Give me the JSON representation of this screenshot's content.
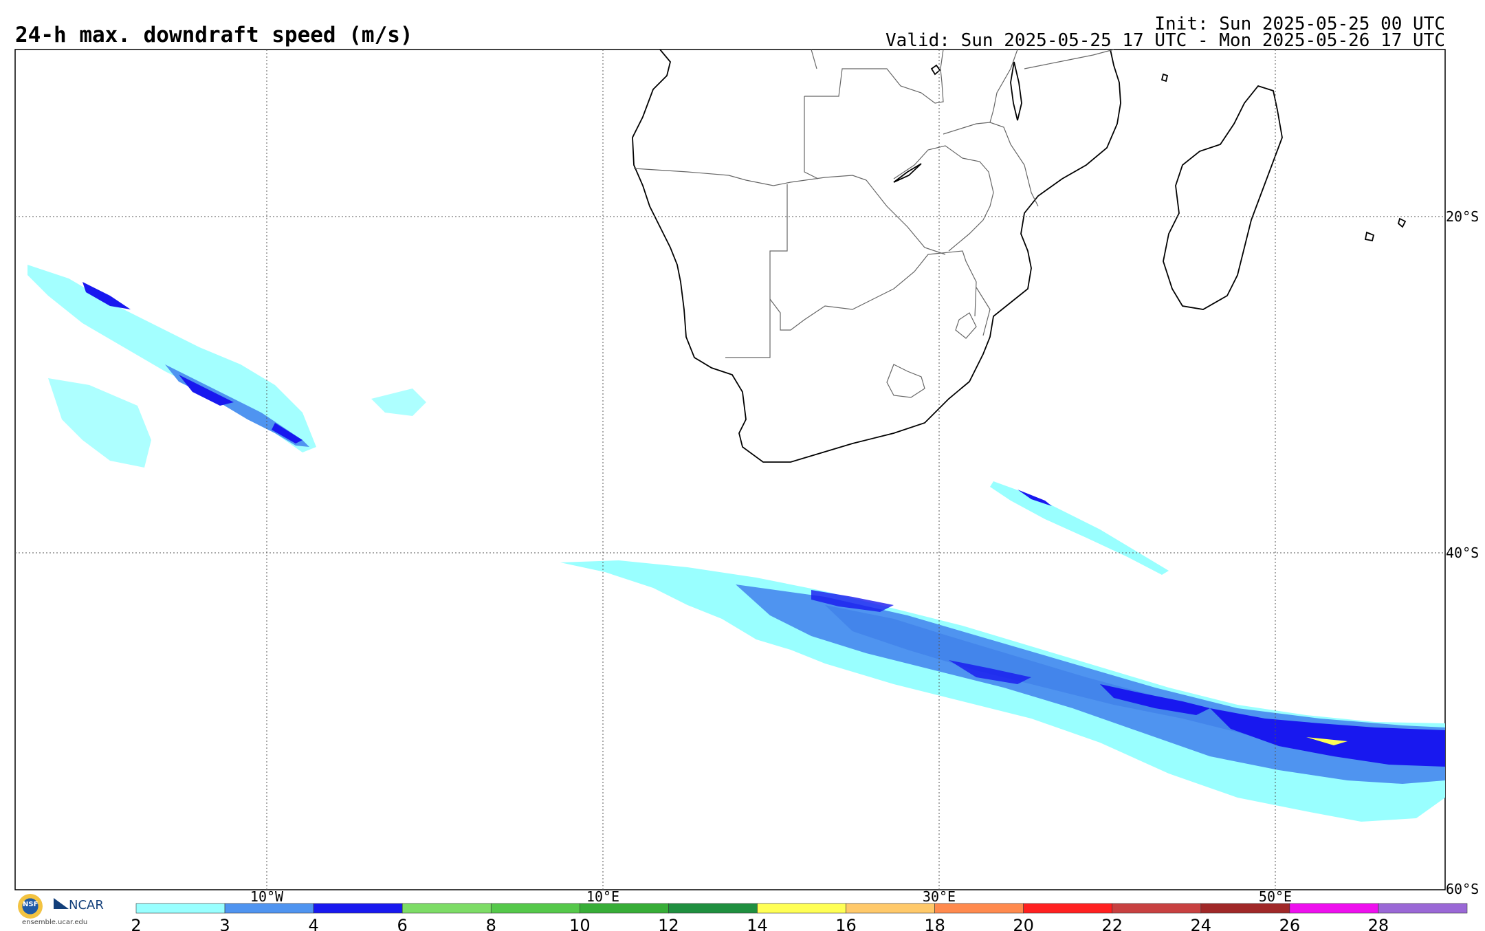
{
  "header": {
    "title": "24-h max. downdraft speed (m/s)",
    "init": "Init: Sun 2025-05-25 00 UTC",
    "valid": "Valid: Sun 2025-05-25 17 UTC - Mon 2025-05-26 17 UTC"
  },
  "map": {
    "region": "Southern Africa and adjacent oceans",
    "longitude_labels": [
      "10°W",
      "10°E",
      "30°E",
      "50°E"
    ],
    "latitude_labels": [
      "20°S",
      "40°S",
      "60°S"
    ],
    "grid_style": "dotted"
  },
  "colorbar": {
    "ticks": [
      "2",
      "3",
      "4",
      "6",
      "8",
      "10",
      "12",
      "14",
      "16",
      "18",
      "20",
      "22",
      "24",
      "26",
      "28"
    ],
    "colors": [
      "#99ffff",
      "#4f94f0",
      "#1818ef",
      "#7ddc66",
      "#55c84a",
      "#37ad37",
      "#1f8f3f",
      "#ffff55",
      "#ffc96a",
      "#ff8a4e",
      "#ff2020",
      "#c84040",
      "#a02828",
      "#ee10ee",
      "#9a68d6"
    ]
  },
  "logos": {
    "nsf": "NSF",
    "ncar": "NCAR",
    "url": "ensemble.ucar.edu"
  }
}
